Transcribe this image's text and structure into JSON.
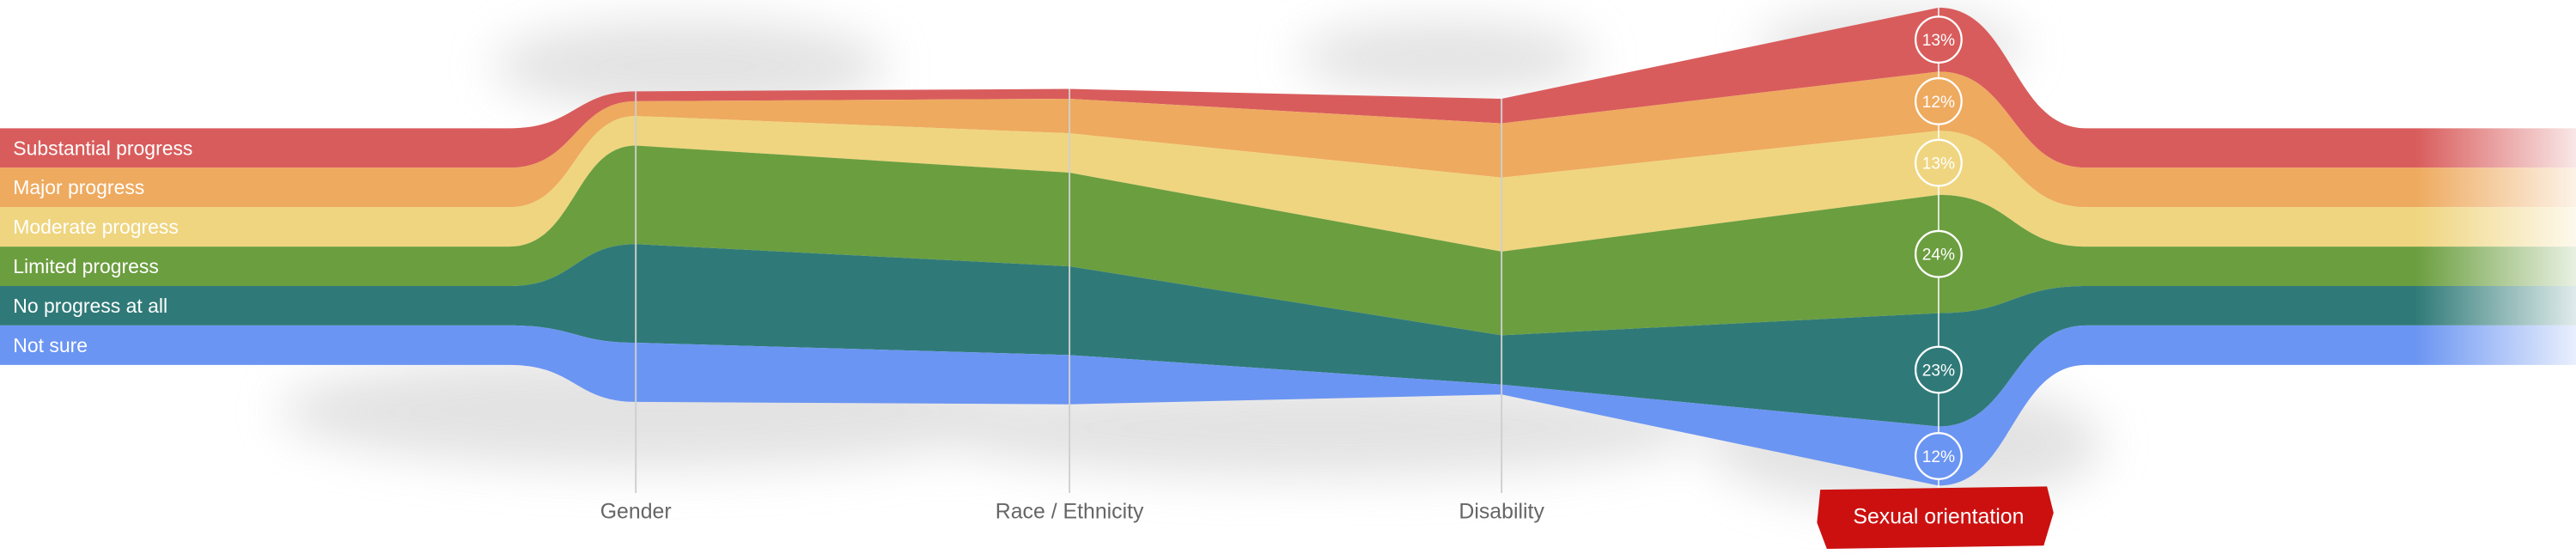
{
  "chart_data": {
    "type": "stream",
    "categories": [
      "Gender",
      "Race / Ethnicity",
      "Disability",
      "Sexual orientation"
    ],
    "highlight": "Sexual orientation",
    "series": [
      {
        "name": "Substantial progress",
        "color": "#d95c5c",
        "values": [
          2,
          2,
          5,
          13
        ],
        "value_labels": [
          null,
          null,
          null,
          "13%"
        ]
      },
      {
        "name": "Major progress",
        "color": "#eeaa5f",
        "values": [
          3,
          7,
          11,
          12
        ],
        "value_labels": [
          null,
          null,
          null,
          "12%"
        ]
      },
      {
        "name": "Moderate progress",
        "color": "#efd57f",
        "values": [
          6,
          8,
          15,
          13
        ],
        "value_labels": [
          null,
          null,
          null,
          "13%"
        ]
      },
      {
        "name": "Limited progress",
        "color": "#6b9e3f",
        "values": [
          20,
          19,
          17,
          24
        ],
        "value_labels": [
          null,
          null,
          null,
          "24%"
        ]
      },
      {
        "name": "No progress at all",
        "color": "#2f7a78",
        "values": [
          20,
          18,
          10,
          23
        ],
        "value_labels": [
          null,
          null,
          null,
          "23%"
        ]
      },
      {
        "name": "Not sure",
        "color": "#6b95f2",
        "values": [
          12,
          10,
          2,
          12
        ],
        "value_labels": [
          null,
          null,
          null,
          "12%"
        ]
      }
    ]
  }
}
